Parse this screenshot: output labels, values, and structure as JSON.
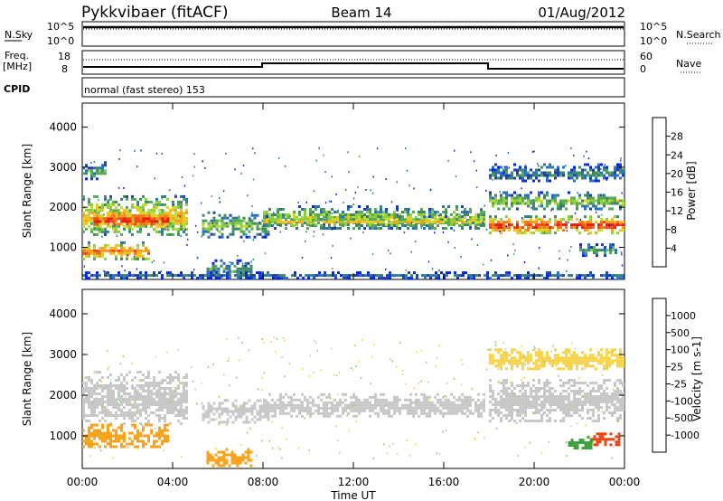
{
  "header": {
    "title": "Pykkvibaer (fitACF)",
    "beam": "Beam 14",
    "date": "01/Aug/2012"
  },
  "strips": {
    "nsky_label": "N.Sky",
    "nsky_ticks": [
      "10^5",
      "10^0"
    ],
    "nsearch_label": "N.Search",
    "nsearch_ticks": [
      "10^5",
      "10^0"
    ],
    "freq_label_1": "Freq.",
    "freq_label_2": "[MHz]",
    "freq_ticks": [
      "18",
      "8"
    ],
    "nave_label": "Nave",
    "nave_ticks": [
      "60",
      "0"
    ],
    "cpid_label": "CPID",
    "cpid_text": "normal (fast stereo) 153"
  },
  "x_axis": {
    "ticks": [
      "00:00",
      "04:00",
      "08:00",
      "12:00",
      "16:00",
      "20:00",
      "00:00"
    ],
    "label": "Time UT"
  },
  "colorbars": {
    "power": {
      "label": "Power [dB]",
      "ticks": [
        "28",
        "24",
        "20",
        "16",
        "12",
        "8",
        "4"
      ],
      "colors": [
        "#0022ee",
        "#1d3fb0",
        "#2a6fbf",
        "#3d8a66",
        "#58a85a",
        "#8fcf3c",
        "#c6dd2c",
        "#f7c11c",
        "#f99a1c",
        "#f47417",
        "#ef4a14",
        "#e51e0f"
      ]
    },
    "velocity": {
      "label": "Velocity [m s-1]",
      "ticks": [
        "1000",
        "500",
        "100",
        "25",
        "-25",
        "-100",
        "-500",
        "-1000"
      ],
      "colors": [
        "#1a2fc0",
        "#2a6fbf",
        "#2e7a4a",
        "#3fa23f",
        "#8bd36a",
        "#c8c8c8",
        "#c8c8c8",
        "#f7d34a",
        "#f9a21c",
        "#f47417",
        "#e84414",
        "#e51e0f"
      ]
    }
  },
  "chart_data": [
    {
      "type": "heatmap",
      "panel": "power",
      "ylabel": "Slant Range [km]",
      "yticks": [
        "1000",
        "2000",
        "3000",
        "4000"
      ],
      "ylim": [
        200,
        4600
      ],
      "xlim_hours": [
        0,
        24
      ],
      "color_key": [
        "#0022ee",
        "#2a6fbf",
        "#3d8a66",
        "#58a85a",
        "#c6dd2c",
        "#f7c11c",
        "#f47417",
        "#e51e0f"
      ],
      "blobs": [
        {
          "t0": 0.0,
          "t1": 4.6,
          "r0": 1300,
          "r1": 2300,
          "p": 18
        },
        {
          "t0": 0.5,
          "t1": 3.8,
          "r0": 1450,
          "r1": 1950,
          "p": 26
        },
        {
          "t0": 0.0,
          "t1": 3.0,
          "r0": 700,
          "r1": 1150,
          "p": 22
        },
        {
          "t0": 0.0,
          "t1": 1.0,
          "r0": 2700,
          "r1": 3150,
          "p": 10
        },
        {
          "t0": 5.3,
          "t1": 8.2,
          "r0": 1250,
          "r1": 1900,
          "p": 12
        },
        {
          "t0": 5.5,
          "t1": 7.5,
          "r0": 250,
          "r1": 700,
          "p": 10
        },
        {
          "t0": 8.0,
          "t1": 17.8,
          "r0": 1450,
          "r1": 2050,
          "p": 14
        },
        {
          "t0": 8.0,
          "t1": 17.8,
          "r0": 1550,
          "r1": 1800,
          "p": 17
        },
        {
          "t0": 18.0,
          "t1": 24.0,
          "r0": 1350,
          "r1": 1800,
          "p": 25
        },
        {
          "t0": 18.0,
          "t1": 24.0,
          "r0": 1950,
          "r1": 2400,
          "p": 13
        },
        {
          "t0": 18.0,
          "t1": 24.0,
          "r0": 2650,
          "r1": 3100,
          "p": 8
        },
        {
          "t0": 22.0,
          "t1": 23.6,
          "r0": 800,
          "r1": 1100,
          "p": 10
        },
        {
          "t0": 0.0,
          "t1": 24.0,
          "r0": 250,
          "r1": 400,
          "p": 6
        }
      ]
    },
    {
      "type": "heatmap",
      "panel": "velocity",
      "ylabel": "Slant Range [km]",
      "yticks": [
        "1000",
        "2000",
        "3000",
        "4000"
      ],
      "ylim": [
        200,
        4600
      ],
      "xlim_hours": [
        0,
        24
      ],
      "color_key": [
        "#1a2fc0",
        "#2a6fbf",
        "#3fa23f",
        "#8bd36a",
        "#c8c8c8",
        "#f7d34a",
        "#f9a21c",
        "#f47417",
        "#e51e0f"
      ],
      "blobs": [
        {
          "t0": 0.0,
          "t1": 4.6,
          "r0": 1300,
          "r1": 2600,
          "v": 0
        },
        {
          "t0": 0.0,
          "t1": 3.8,
          "r0": 750,
          "r1": 1300,
          "v": -300
        },
        {
          "t0": 5.3,
          "t1": 8.2,
          "r0": 1300,
          "r1": 1900,
          "v": 0
        },
        {
          "t0": 5.5,
          "t1": 7.5,
          "r0": 250,
          "r1": 700,
          "v": -350
        },
        {
          "t0": 8.0,
          "t1": 17.8,
          "r0": 1450,
          "r1": 2050,
          "v": 0
        },
        {
          "t0": 18.0,
          "t1": 24.0,
          "r0": 1350,
          "r1": 2400,
          "v": 0
        },
        {
          "t0": 18.0,
          "t1": 24.0,
          "r0": 2650,
          "r1": 3150,
          "v": -60
        },
        {
          "t0": 22.5,
          "t1": 23.8,
          "r0": 800,
          "r1": 1150,
          "v": -600
        },
        {
          "t0": 21.5,
          "t1": 22.5,
          "r0": 700,
          "r1": 1000,
          "v": 300
        }
      ]
    }
  ]
}
